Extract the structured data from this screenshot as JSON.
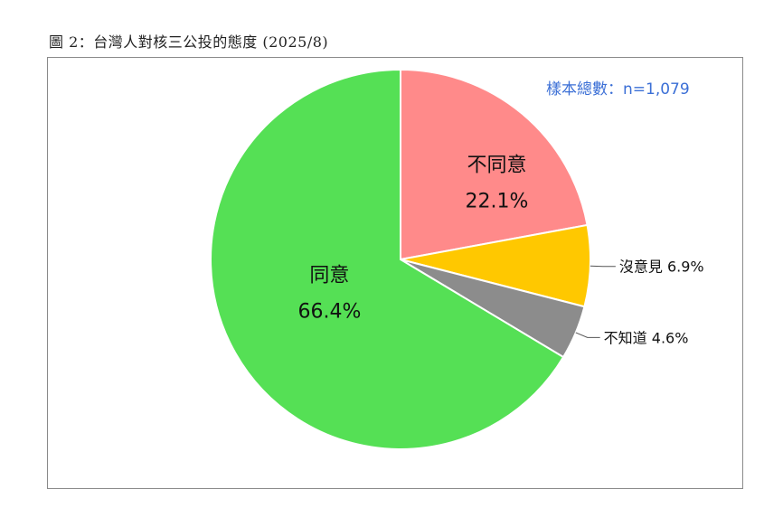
{
  "title": "圖 2：台灣人對核三公投的態度 (2025/8)",
  "sample_note": "樣本總數：n=1,079",
  "chart_data": {
    "type": "pie",
    "title": "圖 2：台灣人對核三公投的態度 (2025/8)",
    "categories": [
      "不同意",
      "沒意見",
      "不知道",
      "同意"
    ],
    "values": [
      22.1,
      6.9,
      4.6,
      66.4
    ],
    "value_labels": [
      "22.1%",
      "6.9%",
      "4.6%",
      "66.4%"
    ],
    "colors": [
      "#ff8a8a",
      "#ffc800",
      "#8c8c8c",
      "#55e055"
    ],
    "start_angle": "top, clockwise",
    "legend": "none",
    "labels": {
      "inside": [
        "不同意",
        "同意"
      ],
      "outside": [
        "沒意見 6.9%",
        "不知道 4.6%"
      ]
    }
  }
}
